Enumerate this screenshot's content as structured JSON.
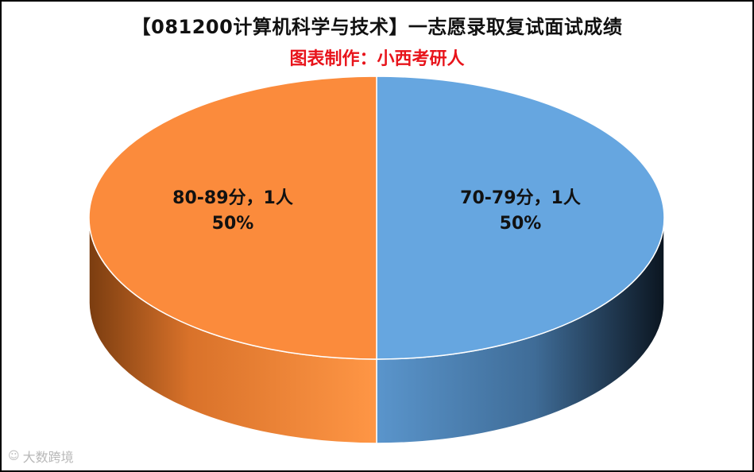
{
  "title": "【081200计算机科学与技术】一志愿录取复试面试成绩",
  "subtitle": "图表制作：小西考研人",
  "subtitle_color": "#e8141b",
  "watermark": {
    "icon": "logo-icon",
    "text": "大数跨境"
  },
  "chart_data": {
    "type": "pie",
    "style": "3d",
    "title": "【081200计算机科学与技术】一志愿录取复试面试成绩",
    "subtitle": "图表制作：小西考研人",
    "slices": [
      {
        "category": "70-79分",
        "label": "70-79分，1人",
        "count": 1,
        "percent_label": "50%",
        "value": 50,
        "color": "#66a6e0",
        "side_color": "#3f6e99"
      },
      {
        "category": "80-89分",
        "label": "80-89分，1人",
        "count": 1,
        "percent_label": "50%",
        "value": 50,
        "color": "#fb8b3c",
        "side_color": "#d66f25"
      }
    ],
    "legend": "none"
  }
}
